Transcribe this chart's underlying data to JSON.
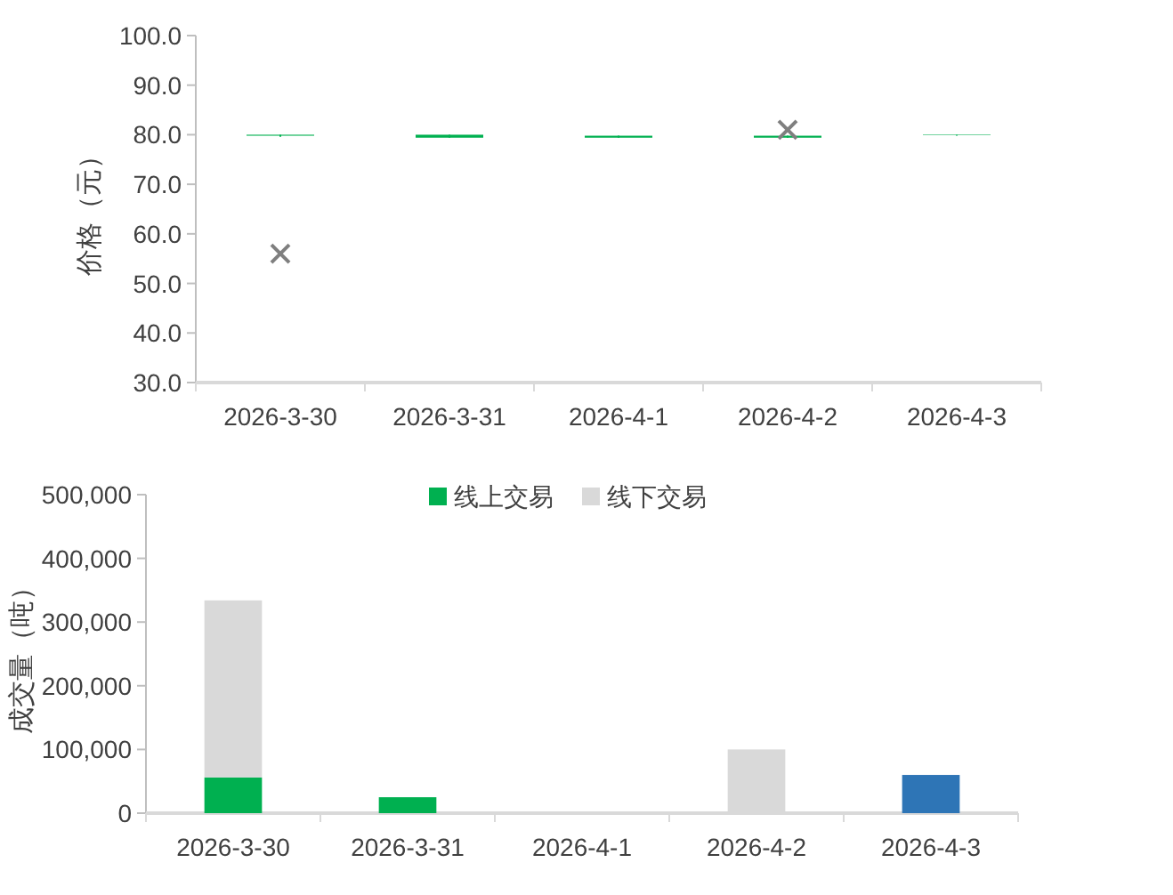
{
  "chart_data": [
    {
      "type": "candlestick",
      "ylabel": "价格（元）",
      "categories": [
        "2026-3-30",
        "2026-3-31",
        "2026-4-1",
        "2026-4-2",
        "2026-4-3"
      ],
      "ohlc": [
        [
          79.8,
          80.0,
          79.6,
          80.0
        ],
        [
          79.4,
          80.0,
          79.4,
          80.0
        ],
        [
          79.4,
          79.8,
          79.4,
          79.8
        ],
        [
          79.4,
          79.8,
          79.4,
          79.8
        ],
        [
          79.9,
          80.0,
          79.8,
          80.0
        ]
      ],
      "color": "#00b050",
      "ylim": [
        30,
        100
      ],
      "yticks": [
        {
          "value": 30,
          "label": "30.0"
        },
        {
          "value": 40,
          "label": "40.0"
        },
        {
          "value": 50,
          "label": "50.0"
        },
        {
          "value": 60,
          "label": "60.0"
        },
        {
          "value": 70,
          "label": "70.0"
        },
        {
          "value": 80,
          "label": "80.0"
        },
        {
          "value": 90,
          "label": "90.0"
        },
        {
          "value": 100,
          "label": "100.0"
        }
      ],
      "series": [
        {
          "type": "scatter",
          "color": "#7f7f7f",
          "marker": "cross",
          "values": [
            56,
            null,
            null,
            81,
            null
          ]
        }
      ]
    },
    {
      "type": "bar",
      "stacked": true,
      "ylabel": "成交量（吨）",
      "categories": [
        "2026-3-30",
        "2026-3-31",
        "2026-4-1",
        "2026-4-2",
        "2026-4-3"
      ],
      "ylim": [
        0,
        500000
      ],
      "yticks": [
        0,
        {
          "value": 100000,
          "label": "100,000"
        },
        {
          "value": 200000,
          "label": "200,000"
        },
        {
          "value": 300000,
          "label": "300,000"
        },
        {
          "value": 400000,
          "label": "400,000"
        },
        {
          "value": 500000,
          "label": "500,000"
        }
      ],
      "legend": "top",
      "series": [
        {
          "name": "线上交易",
          "color": "#00b050",
          "values": [
            56000,
            25000,
            null,
            null,
            null
          ]
        },
        {
          "name": "线下交易",
          "color": "#d9d9d9",
          "values": [
            278000,
            null,
            null,
            100000,
            null
          ]
        },
        {
          "color": "#2e75b6",
          "values": [
            null,
            null,
            null,
            null,
            60000
          ]
        }
      ]
    }
  ]
}
